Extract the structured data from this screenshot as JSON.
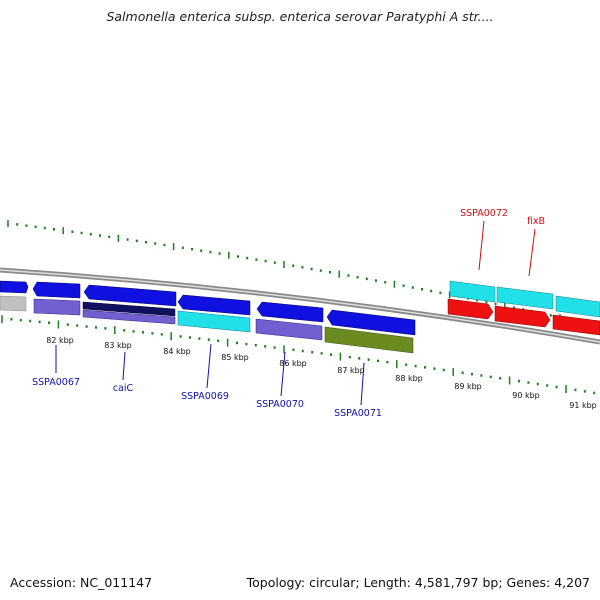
{
  "title": "Salmonella enterica subsp. enterica serovar Paratyphi A str....",
  "footer": {
    "accession": "Accession: NC_011147",
    "summary": "Topology: circular; Length: 4,581,797 bp; Genes: 4,207"
  },
  "colors": {
    "backbone": "#8a8a8a",
    "tick": "#1e7d1e",
    "label_blue": "#1010b0",
    "label_red": "#d01010",
    "gene_blue": "#1010e0",
    "gene_cyan": "#22e0e8",
    "gene_red": "#ee1111",
    "gene_purple": "#7060d0",
    "gene_navy": "#101060",
    "gene_olive": "#6b8a20",
    "gene_gray": "#c0c0c0"
  },
  "ruler": {
    "tick_labels": [
      "82 kbp",
      "83 kbp",
      "84 kbp",
      "85 kbp",
      "86 kbp",
      "87 kbp",
      "88 kbp",
      "89 kbp",
      "90 kbp",
      "91 kbp"
    ]
  },
  "gene_labels": [
    {
      "text": "SSPA0067",
      "color": "blue"
    },
    {
      "text": "caiC",
      "color": "blue"
    },
    {
      "text": "SSPA0069",
      "color": "blue"
    },
    {
      "text": "SSPA0070",
      "color": "blue"
    },
    {
      "text": "SSPA0071",
      "color": "blue"
    },
    {
      "text": "SSPA0072",
      "color": "red"
    },
    {
      "text": "fixB",
      "color": "red"
    }
  ]
}
